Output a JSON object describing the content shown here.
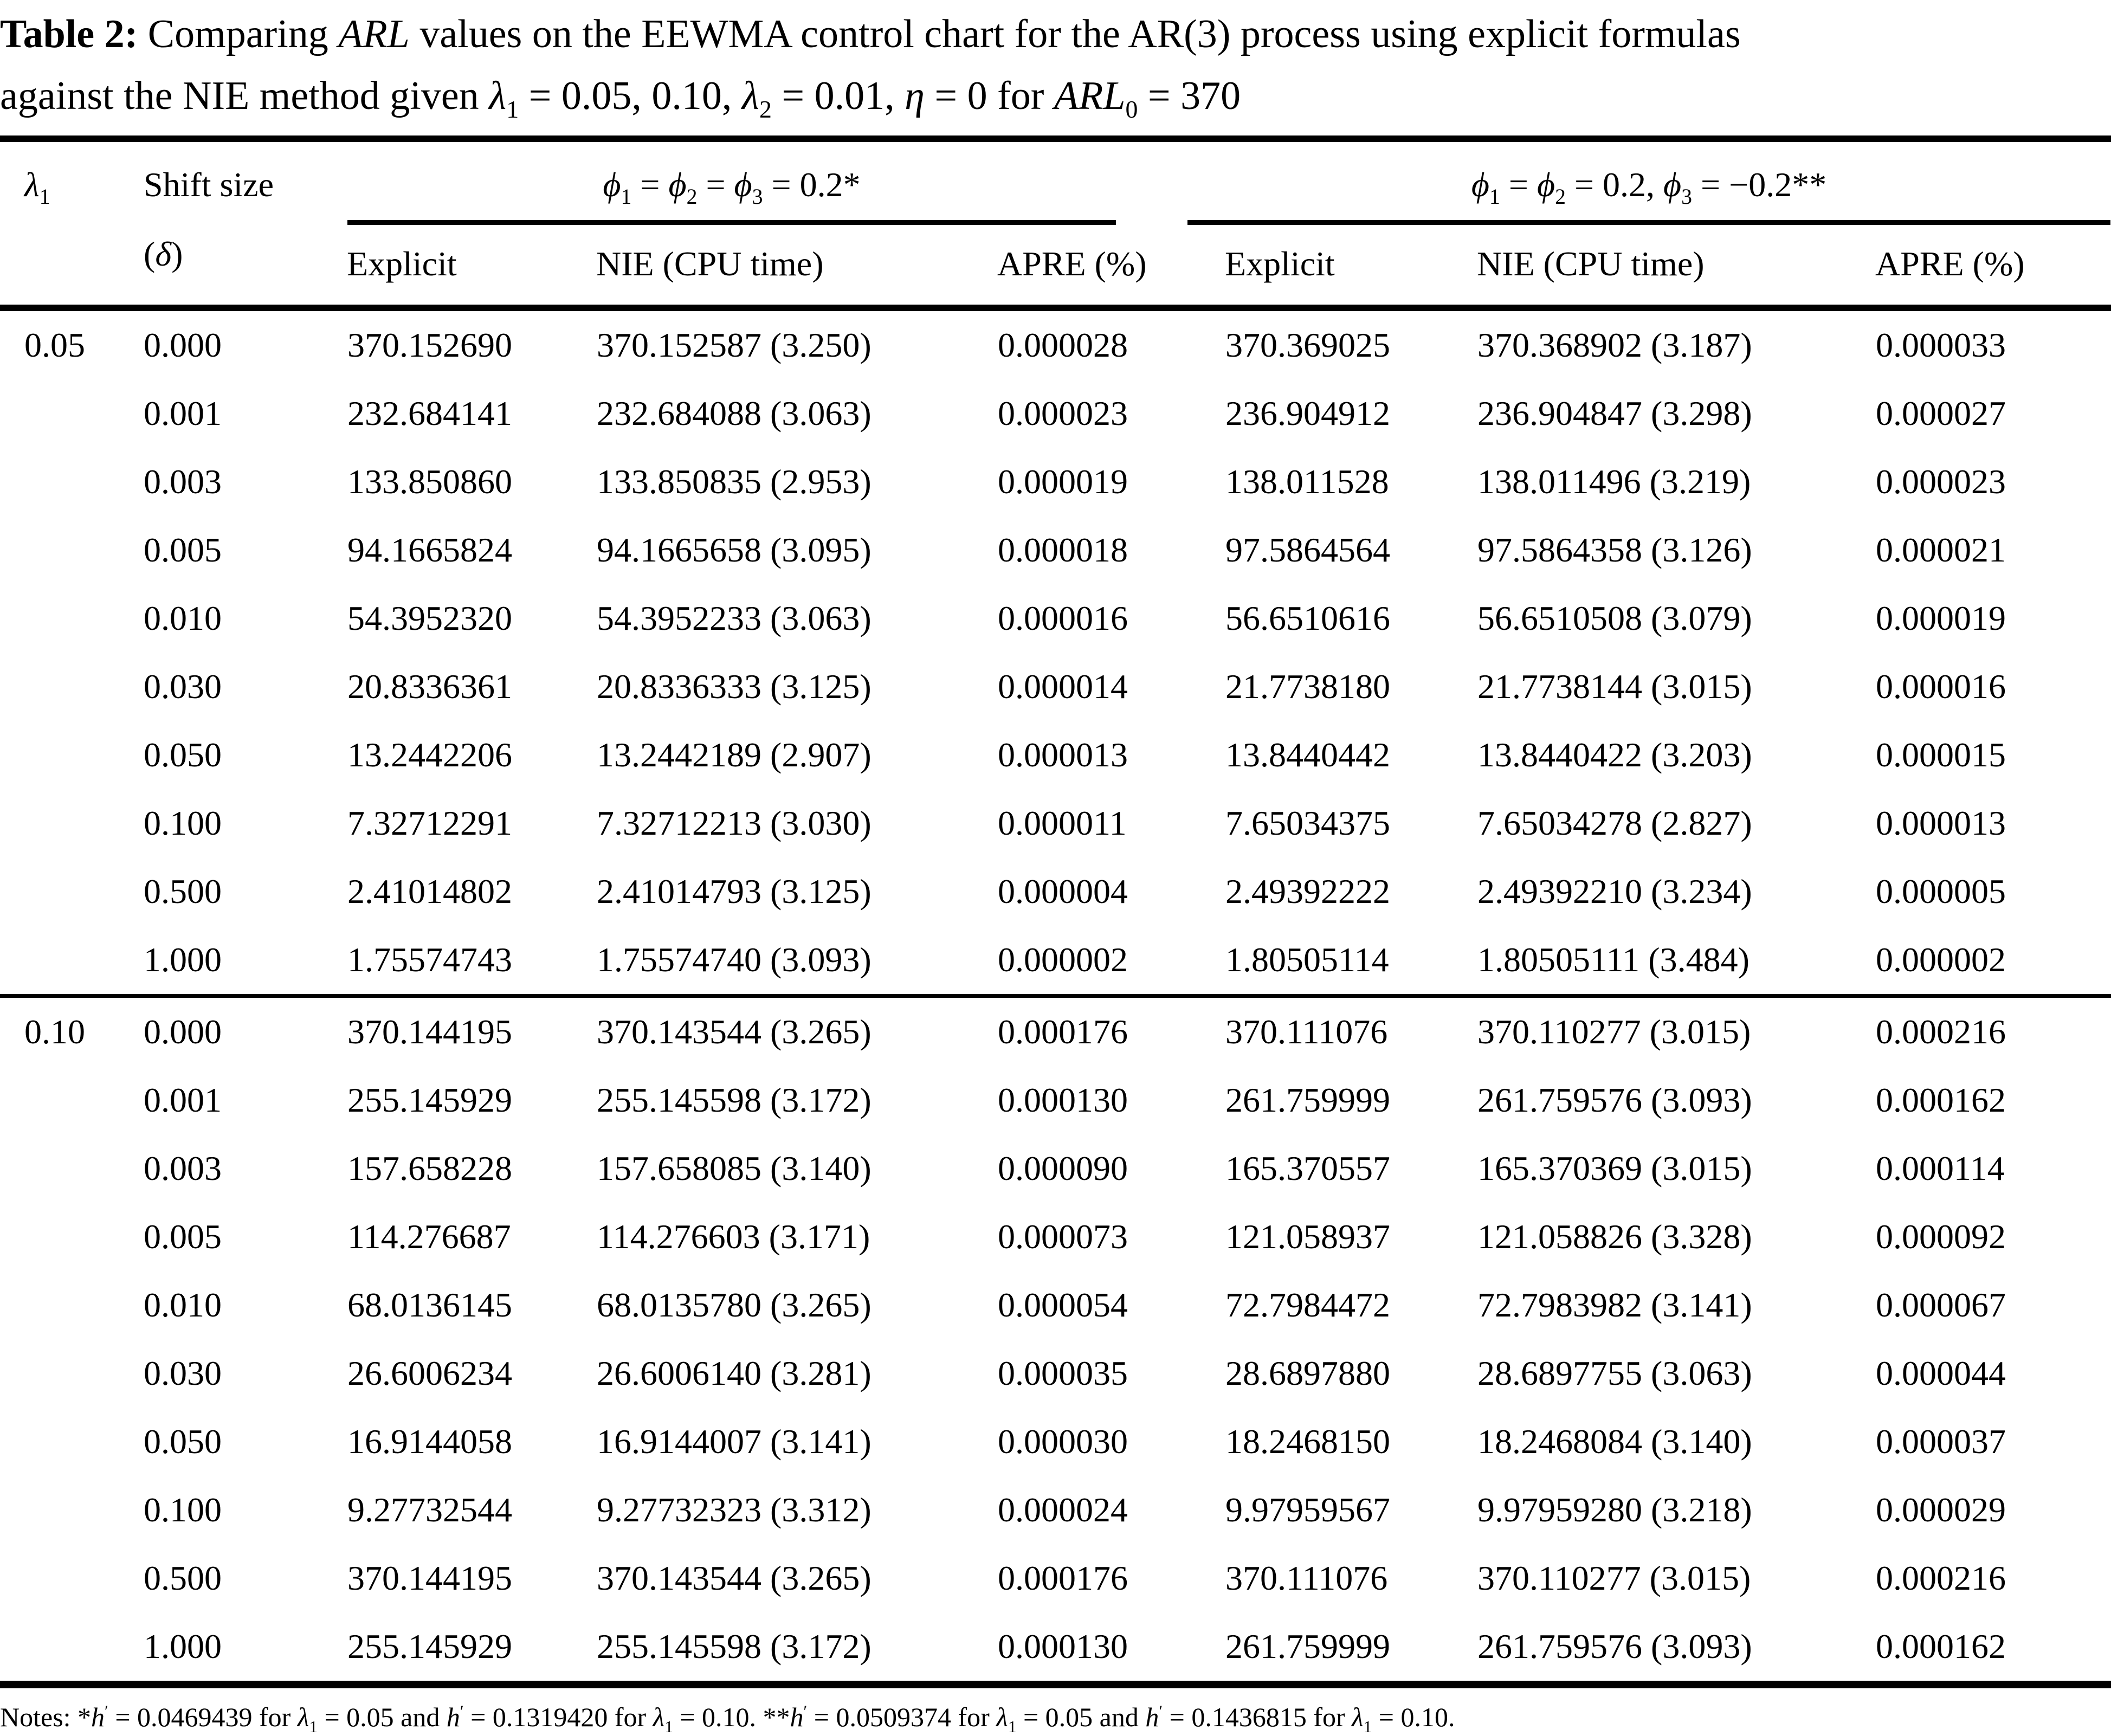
{
  "table": {
    "caption_segments": [
      {
        "t": "Table 2:",
        "b": true
      },
      {
        "t": "  Comparing "
      },
      {
        "t": "ARL",
        "i": true
      },
      {
        "t": " values on the EEWMA control chart for the AR(3) process using explicit formulas"
      },
      {
        "br": true
      },
      {
        "t": "against the NIE method given "
      },
      {
        "t": "λ",
        "i": true
      },
      {
        "t": "1",
        "sub": true
      },
      {
        "t": " = 0.05, 0.10, "
      },
      {
        "t": "λ",
        "i": true
      },
      {
        "t": "2",
        "sub": true
      },
      {
        "t": " = 0.01, "
      },
      {
        "t": "η",
        "i": true
      },
      {
        "t": " = 0 for "
      },
      {
        "t": "ARL",
        "i": true
      },
      {
        "t": "0",
        "sub": true
      },
      {
        "t": " = 370"
      }
    ],
    "header": {
      "lambda_segments": [
        {
          "t": "λ",
          "i": true
        },
        {
          "t": "1",
          "sub": true
        }
      ],
      "shift_line1": "Shift size",
      "shift_line2_segments": [
        {
          "t": "("
        },
        {
          "t": "δ",
          "i": true
        },
        {
          "t": ")"
        }
      ],
      "group1_segments": [
        {
          "t": "ϕ",
          "i": true
        },
        {
          "t": "1",
          "sub": true
        },
        {
          "t": " = "
        },
        {
          "t": "ϕ",
          "i": true
        },
        {
          "t": "2",
          "sub": true
        },
        {
          "t": " = "
        },
        {
          "t": "ϕ",
          "i": true
        },
        {
          "t": "3",
          "sub": true
        },
        {
          "t": " = 0.2*"
        }
      ],
      "group2_segments": [
        {
          "t": "ϕ",
          "i": true
        },
        {
          "t": "1",
          "sub": true
        },
        {
          "t": " = "
        },
        {
          "t": "ϕ",
          "i": true
        },
        {
          "t": "2",
          "sub": true
        },
        {
          "t": " = 0.2, "
        },
        {
          "t": "ϕ",
          "i": true
        },
        {
          "t": "3",
          "sub": true
        },
        {
          "t": " = −0.2**"
        }
      ],
      "sub_headers": [
        "Explicit",
        "NIE (CPU time)",
        "APRE (%)",
        "Explicit",
        "NIE (CPU time)",
        "APRE (%)"
      ]
    },
    "blocks": [
      {
        "lambda1": "0.05",
        "rows": [
          [
            "0.000",
            "370.152690",
            "370.152587 (3.250)",
            "0.000028",
            "370.369025",
            "370.368902 (3.187)",
            "0.000033"
          ],
          [
            "0.001",
            "232.684141",
            "232.684088 (3.063)",
            "0.000023",
            "236.904912",
            "236.904847 (3.298)",
            "0.000027"
          ],
          [
            "0.003",
            "133.850860",
            "133.850835 (2.953)",
            "0.000019",
            "138.011528",
            "138.011496 (3.219)",
            "0.000023"
          ],
          [
            "0.005",
            "94.1665824",
            "94.1665658 (3.095)",
            "0.000018",
            "97.5864564",
            "97.5864358 (3.126)",
            "0.000021"
          ],
          [
            "0.010",
            "54.3952320",
            "54.3952233 (3.063)",
            "0.000016",
            "56.6510616",
            "56.6510508 (3.079)",
            "0.000019"
          ],
          [
            "0.030",
            "20.8336361",
            "20.8336333 (3.125)",
            "0.000014",
            "21.7738180",
            "21.7738144 (3.015)",
            "0.000016"
          ],
          [
            "0.050",
            "13.2442206",
            "13.2442189 (2.907)",
            "0.000013",
            "13.8440442",
            "13.8440422 (3.203)",
            "0.000015"
          ],
          [
            "0.100",
            "7.32712291",
            "7.32712213 (3.030)",
            "0.000011",
            "7.65034375",
            "7.65034278 (2.827)",
            "0.000013"
          ],
          [
            "0.500",
            "2.41014802",
            "2.41014793 (3.125)",
            "0.000004",
            "2.49392222",
            "2.49392210 (3.234)",
            "0.000005"
          ],
          [
            "1.000",
            "1.75574743",
            "1.75574740 (3.093)",
            "0.000002",
            "1.80505114",
            "1.80505111 (3.484)",
            "0.000002"
          ]
        ]
      },
      {
        "lambda1": "0.10",
        "rows": [
          [
            "0.000",
            "370.144195",
            "370.143544 (3.265)",
            "0.000176",
            "370.111076",
            "370.110277 (3.015)",
            "0.000216"
          ],
          [
            "0.001",
            "255.145929",
            "255.145598 (3.172)",
            "0.000130",
            "261.759999",
            "261.759576 (3.093)",
            "0.000162"
          ],
          [
            "0.003",
            "157.658228",
            "157.658085 (3.140)",
            "0.000090",
            "165.370557",
            "165.370369 (3.015)",
            "0.000114"
          ],
          [
            "0.005",
            "114.276687",
            "114.276603 (3.171)",
            "0.000073",
            "121.058937",
            "121.058826 (3.328)",
            "0.000092"
          ],
          [
            "0.010",
            "68.0136145",
            "68.0135780 (3.265)",
            "0.000054",
            "72.7984472",
            "72.7983982 (3.141)",
            "0.000067"
          ],
          [
            "0.030",
            "26.6006234",
            "26.6006140 (3.281)",
            "0.000035",
            "28.6897880",
            "28.6897755 (3.063)",
            "0.000044"
          ],
          [
            "0.050",
            "16.9144058",
            "16.9144007 (3.141)",
            "0.000030",
            "18.2468150",
            "18.2468084 (3.140)",
            "0.000037"
          ],
          [
            "0.100",
            "9.27732544",
            "9.27732323 (3.312)",
            "0.000024",
            "9.97959567",
            "9.97959280 (3.218)",
            "0.000029"
          ],
          [
            "0.500",
            "370.144195",
            "370.143544 (3.265)",
            "0.000176",
            "370.111076",
            "370.110277 (3.015)",
            "0.000216"
          ],
          [
            "1.000",
            "255.145929",
            "255.145598 (3.172)",
            "0.000130",
            "261.759999",
            "261.759576 (3.093)",
            "0.000162"
          ]
        ]
      }
    ],
    "footnote_segments": [
      {
        "t": "Notes: *"
      },
      {
        "t": "h",
        "i": true
      },
      {
        "t": "′",
        "sup": true
      },
      {
        "t": " = 0.0469439 for "
      },
      {
        "t": "λ",
        "i": true
      },
      {
        "t": "1",
        "sub": true
      },
      {
        "t": " = 0.05 and "
      },
      {
        "t": "h",
        "i": true
      },
      {
        "t": "′",
        "sup": true
      },
      {
        "t": " = 0.1319420 for "
      },
      {
        "t": "λ",
        "i": true
      },
      {
        "t": "1",
        "sub": true
      },
      {
        "t": " = 0.10. **"
      },
      {
        "t": "h",
        "i": true
      },
      {
        "t": "′",
        "sup": true
      },
      {
        "t": " = 0.0509374 for "
      },
      {
        "t": "λ",
        "i": true
      },
      {
        "t": "1",
        "sub": true
      },
      {
        "t": " = 0.05 and "
      },
      {
        "t": "h",
        "i": true
      },
      {
        "t": "′",
        "sup": true
      },
      {
        "t": " = 0.1436815 for "
      },
      {
        "t": "λ",
        "i": true
      },
      {
        "t": "1",
        "sub": true
      },
      {
        "t": " = 0.10."
      }
    ]
  }
}
